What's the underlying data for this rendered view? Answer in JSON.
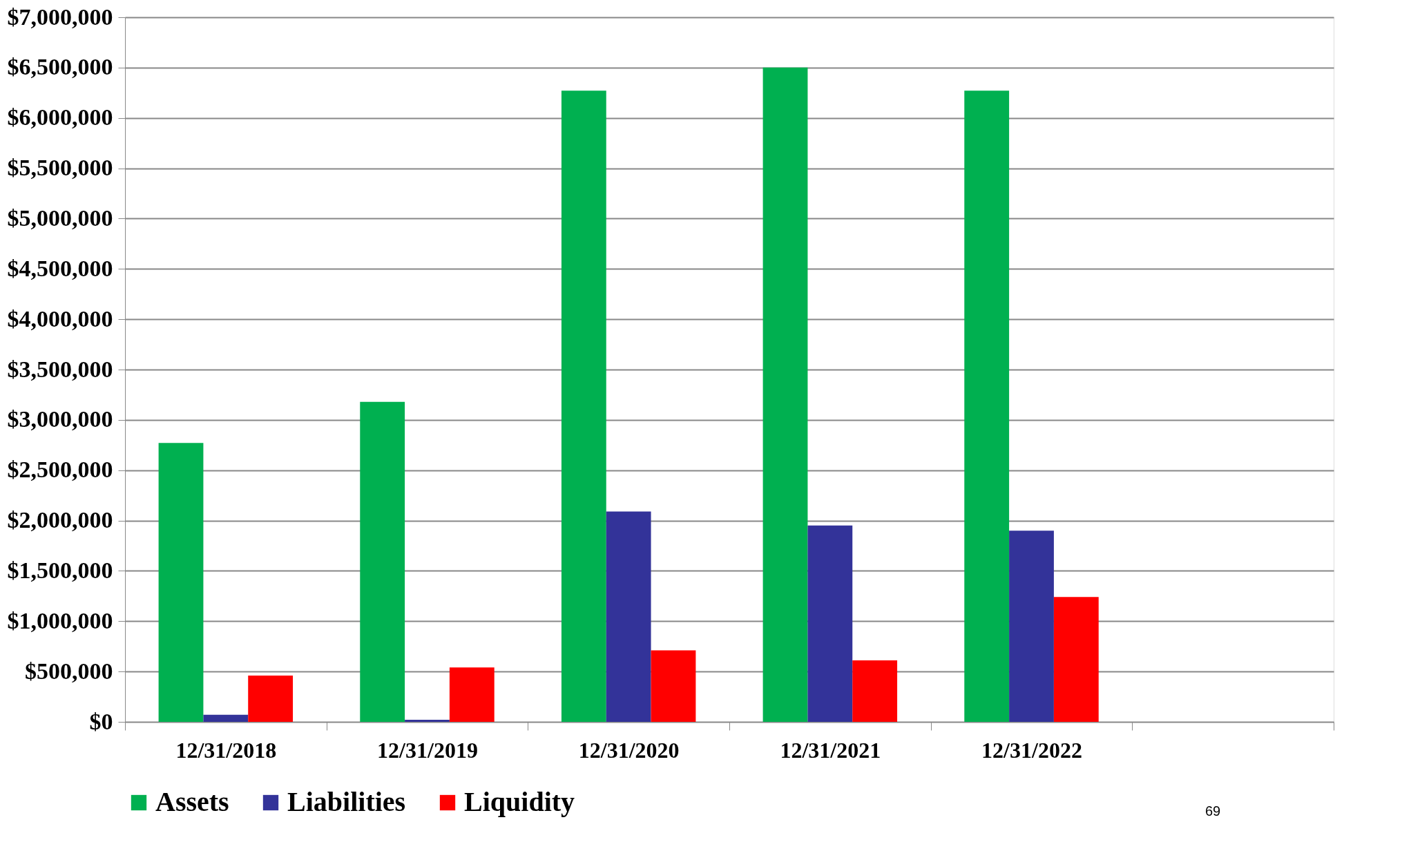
{
  "chart_data": {
    "type": "bar",
    "categories": [
      "12/31/2018",
      "12/31/2019",
      "12/31/2020",
      "12/31/2021",
      "12/31/2022",
      null
    ],
    "series": [
      {
        "name": "Assets",
        "color": "#00b050",
        "values": [
          2770000,
          3180000,
          6270000,
          6500000,
          6270000,
          null
        ]
      },
      {
        "name": "Liabilities",
        "color": "#333399",
        "values": [
          70000,
          20000,
          2090000,
          1950000,
          1900000,
          null
        ]
      },
      {
        "name": "Liquidity",
        "color": "#ff0000",
        "values": [
          460000,
          540000,
          710000,
          610000,
          1240000,
          null
        ]
      }
    ],
    "ylim": [
      0,
      7000000
    ],
    "yticks": [
      {
        "value": 0,
        "label": "$0"
      },
      {
        "value": 500000,
        "label": "$500,000"
      },
      {
        "value": 1000000,
        "label": "$1,000,000"
      },
      {
        "value": 1500000,
        "label": "$1,500,000"
      },
      {
        "value": 2000000,
        "label": "$2,000,000"
      },
      {
        "value": 2500000,
        "label": "$2,500,000"
      },
      {
        "value": 3000000,
        "label": "$3,000,000"
      },
      {
        "value": 3500000,
        "label": "$3,500,000"
      },
      {
        "value": 4000000,
        "label": "$4,000,000"
      },
      {
        "value": 4500000,
        "label": "$4,500,000"
      },
      {
        "value": 5000000,
        "label": "$5,000,000"
      },
      {
        "value": 5500000,
        "label": "$5,500,000"
      },
      {
        "value": 6000000,
        "label": "$6,000,000"
      },
      {
        "value": 6500000,
        "label": "$6,500,000"
      },
      {
        "value": 7000000,
        "label": "$7,000,000"
      }
    ],
    "grid": "y",
    "legend": "bottom",
    "annotations": [
      "69"
    ]
  }
}
